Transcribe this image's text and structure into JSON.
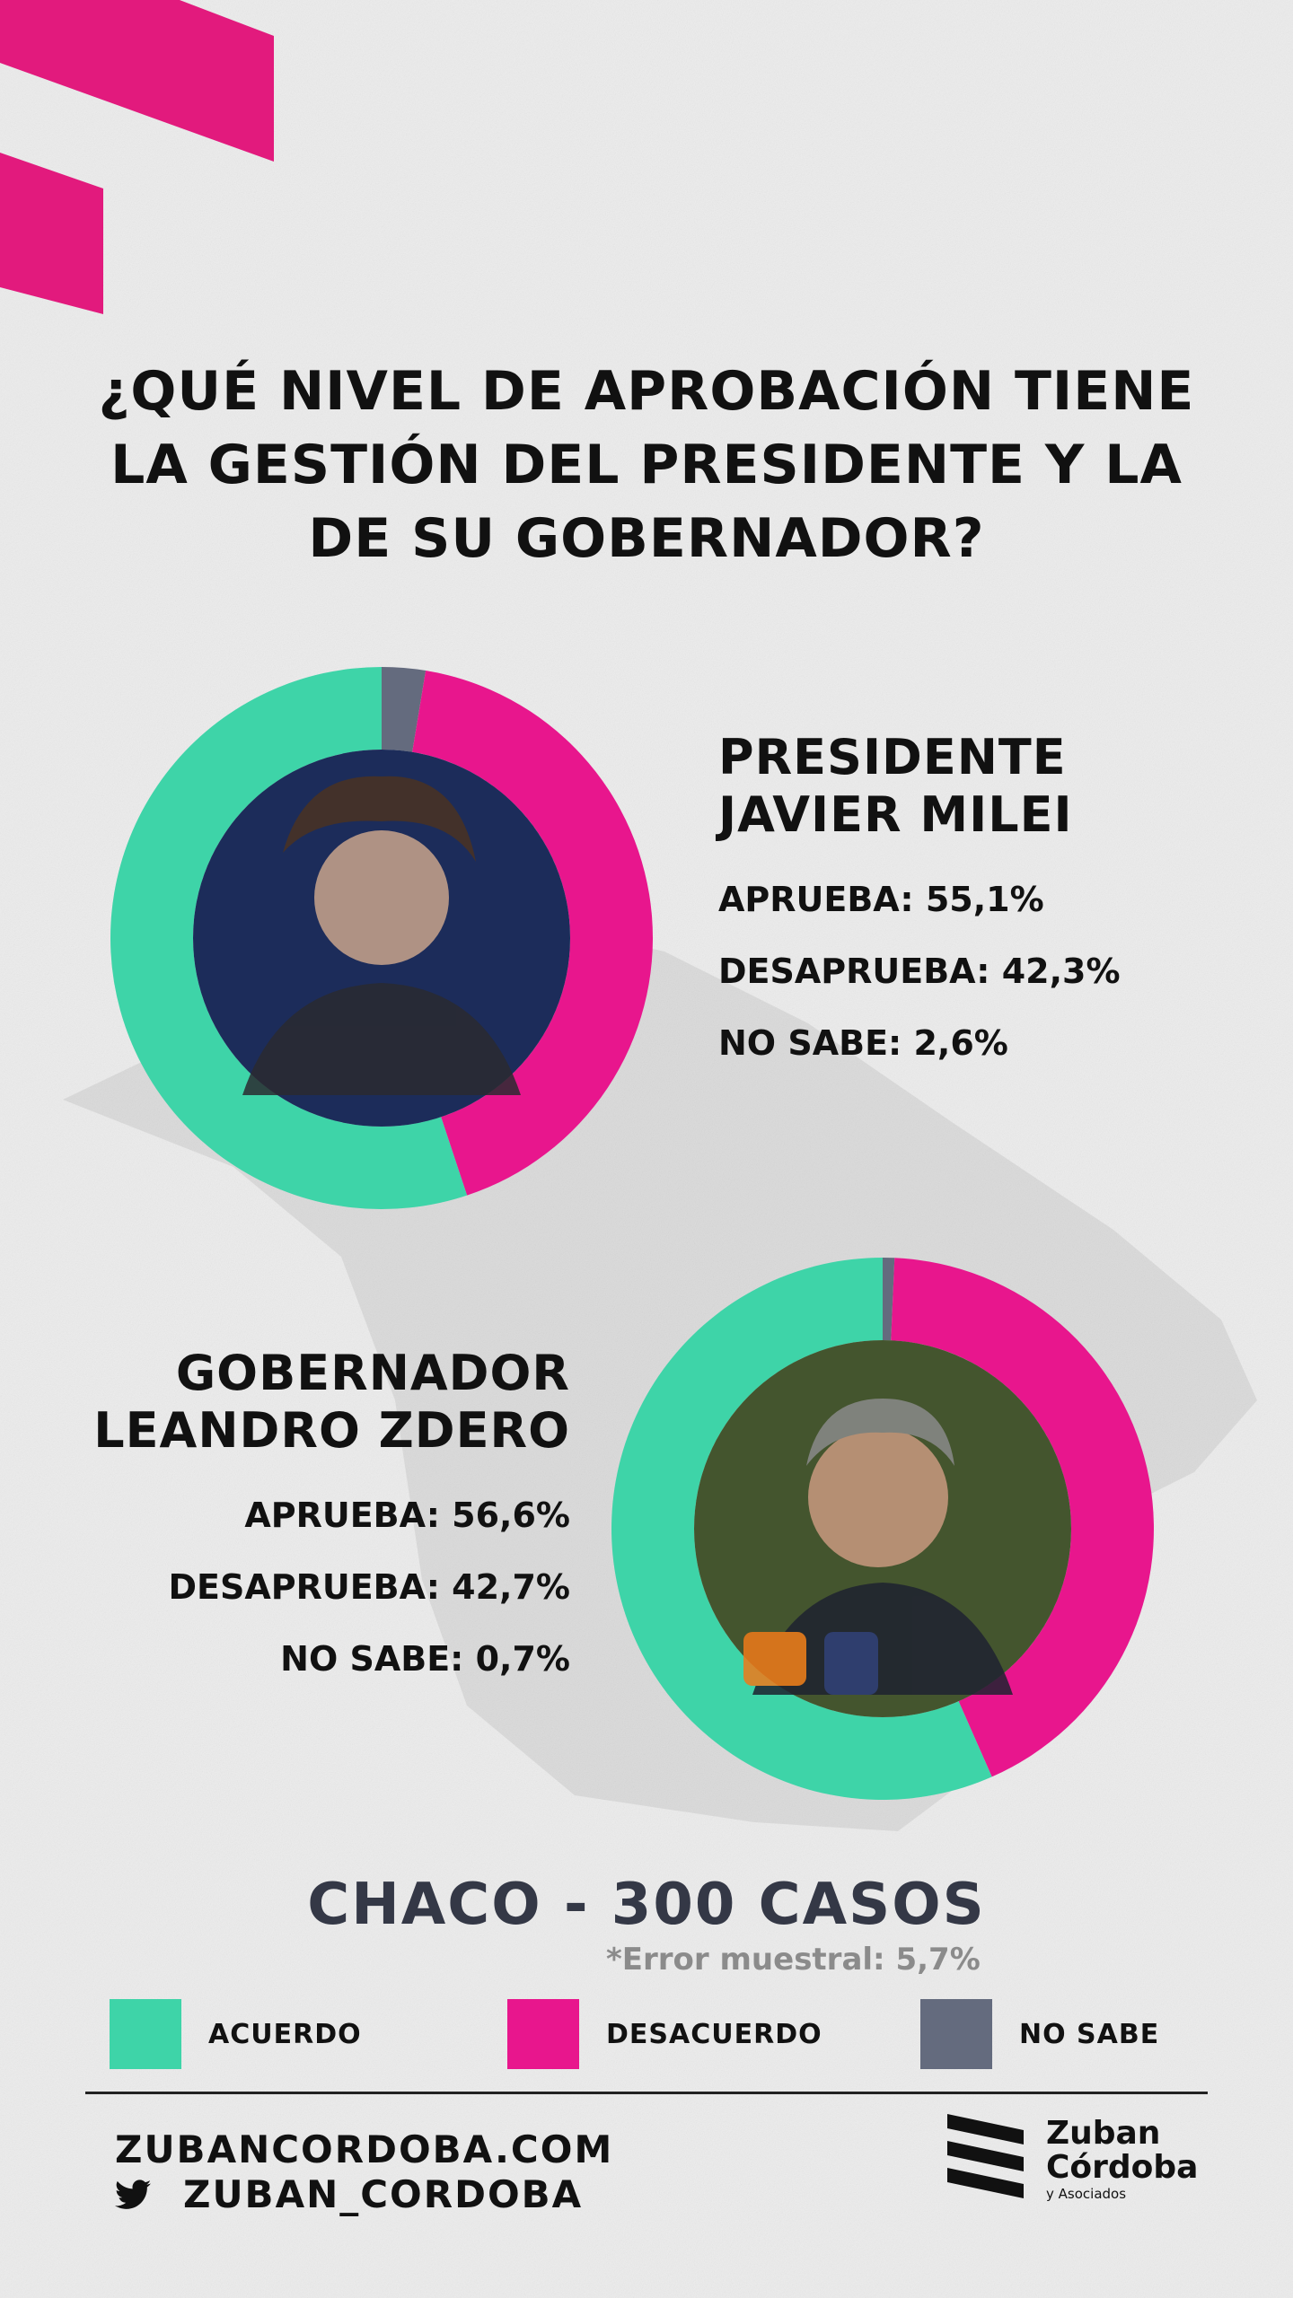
{
  "colors": {
    "acuerdo": "#3ed4a8",
    "desacuerdo": "#e8168d",
    "no_sabe": "#646b7e",
    "accent": "#e21a7d"
  },
  "headline": [
    "¿QUÉ NIVEL DE APROBACIÓN TIENE",
    "LA GESTIÓN DEL PRESIDENTE Y LA",
    "DE SU GOBERNADOR?"
  ],
  "chart_data": [
    {
      "type": "pie",
      "name_lines": [
        "PRESIDENTE",
        "JAVIER MILEI"
      ],
      "categories": [
        "ACUERDO",
        "DESACUERDO",
        "NO SABE"
      ],
      "values": [
        55.1,
        42.3,
        2.6
      ],
      "start": "top",
      "order": [
        "NO SABE",
        "DESACUERDO",
        "ACUERDO"
      ],
      "stats": [
        "APRUEBA: 55,1%",
        "DESAPRUEBA: 42,3%",
        "NO SABE: 2,6%"
      ]
    },
    {
      "type": "pie",
      "name_lines": [
        "GOBERNADOR",
        "LEANDRO ZDERO"
      ],
      "categories": [
        "ACUERDO",
        "DESACUERDO",
        "NO SABE"
      ],
      "values": [
        56.6,
        42.7,
        0.7
      ],
      "start": "top",
      "order": [
        "NO SABE",
        "DESACUERDO",
        "ACUERDO"
      ],
      "stats": [
        "APRUEBA: 56,6%",
        "DESAPRUEBA: 42,7%",
        "NO SABE: 0,7%"
      ]
    }
  ],
  "sample": "CHACO - 300 CASOS",
  "error": "*Error muestral: 5,7%",
  "legend": [
    {
      "label": "ACUERDO",
      "color": "#3ed4a8"
    },
    {
      "label": "DESACUERDO",
      "color": "#e8168d"
    },
    {
      "label": "NO SABE",
      "color": "#646b7e"
    }
  ],
  "footer": {
    "site": "ZUBANCORDOBA.COM",
    "twitter_icon": "twitter-bird-icon",
    "twitter": "ZUBAN_CORDOBA",
    "brand": [
      "Zuban",
      "Córdoba",
      "y Asociados"
    ]
  }
}
